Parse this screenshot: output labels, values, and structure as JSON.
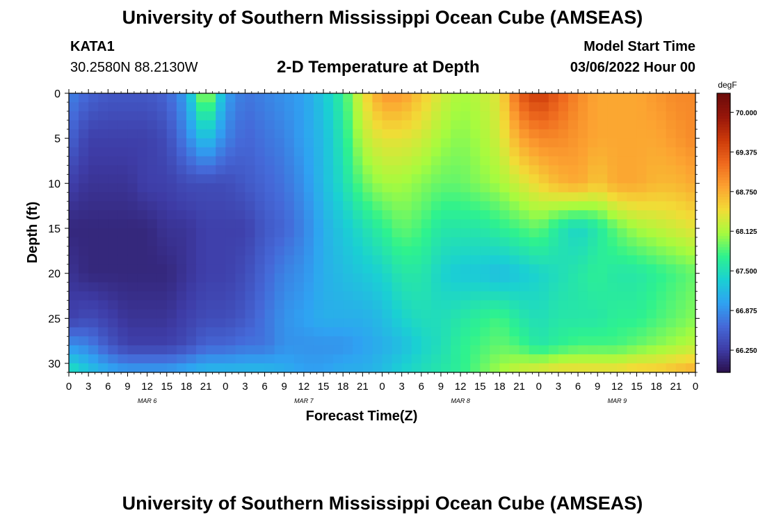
{
  "header": {
    "title": "University of Southern Mississippi Ocean Cube (AMSEAS)",
    "station_id": "KATA1",
    "coordinates": "30.2580N  88.2130W",
    "subtitle": "2-D Temperature at Depth",
    "start_label": "Model Start Time",
    "start_value": "03/06/2022 Hour 00"
  },
  "footer": {
    "title": "University of Southern Mississippi Ocean Cube (AMSEAS)"
  },
  "chart_data": {
    "type": "heatmap",
    "title": "2-D Temperature at Depth",
    "xlabel": "Forecast Time(Z)",
    "ylabel": "Depth (ft)",
    "x_unit": "forecast hour from 03/06/2022 00Z",
    "xlim": [
      0,
      96
    ],
    "ylim": [
      0,
      31
    ],
    "y_inverted": true,
    "x_tick_hours": [
      0,
      3,
      6,
      9,
      12,
      15,
      18,
      21,
      24,
      27,
      30,
      33,
      36,
      39,
      42,
      45,
      48,
      51,
      54,
      57,
      60,
      63,
      66,
      69,
      72,
      75,
      78,
      81,
      84,
      87,
      90,
      93,
      96
    ],
    "x_tick_labels": [
      "0",
      "3",
      "6",
      "9",
      "12",
      "15",
      "18",
      "21",
      "0",
      "3",
      "6",
      "9",
      "12",
      "15",
      "18",
      "21",
      "0",
      "3",
      "6",
      "9",
      "12",
      "15",
      "18",
      "21",
      "0",
      "3",
      "6",
      "9",
      "12",
      "15",
      "18",
      "21",
      "0"
    ],
    "date_labels": [
      {
        "hour": 12,
        "label": "MAR 6"
      },
      {
        "hour": 36,
        "label": "MAR 7"
      },
      {
        "hour": 60,
        "label": "MAR 8"
      },
      {
        "hour": 84,
        "label": "MAR 9"
      }
    ],
    "y_ticks": [
      0,
      5,
      10,
      15,
      20,
      25,
      30
    ],
    "colorbar": {
      "unit": "degF",
      "min": 65.9,
      "max": 70.3,
      "ticks": [
        66.25,
        66.875,
        67.5,
        68.125,
        68.75,
        69.375,
        70.0
      ],
      "tick_labels": [
        "66.250",
        "66.875",
        "67.500",
        "68.125",
        "68.750",
        "69.375",
        "70.000"
      ],
      "colors": [
        "#2a0f4a",
        "#3e3ca6",
        "#4569d8",
        "#2fa2f2",
        "#1ad0d3",
        "#2ef28e",
        "#a7fb3e",
        "#f2dc36",
        "#fca231",
        "#ef6a1e",
        "#cc3a0a",
        "#97160a",
        "#6b0b0a"
      ]
    },
    "depths": [
      0,
      5,
      10,
      15,
      20,
      25,
      28,
      31
    ],
    "times": [
      0,
      3,
      6,
      9,
      12,
      15,
      18,
      21,
      24,
      27,
      30,
      33,
      36,
      39,
      42,
      45,
      48,
      51,
      54,
      57,
      60,
      63,
      66,
      69,
      72,
      75,
      78,
      81,
      84,
      87,
      90,
      93,
      96
    ],
    "temperature": [
      [
        66.8,
        66.6,
        66.5,
        66.5,
        66.5,
        66.6,
        67.0,
        68.3,
        67.0,
        66.7,
        66.8,
        66.9,
        67.0,
        67.3,
        67.7,
        68.4,
        68.9,
        68.9,
        68.6,
        68.3,
        68.1,
        68.2,
        68.4,
        69.3,
        69.6,
        69.3,
        69.0,
        68.8,
        68.8,
        68.8,
        68.9,
        69.0,
        69.0
      ],
      [
        66.6,
        66.3,
        66.3,
        66.3,
        66.3,
        66.4,
        66.8,
        67.3,
        66.8,
        66.6,
        66.7,
        66.8,
        67.0,
        67.2,
        67.6,
        68.2,
        68.4,
        68.4,
        68.3,
        68.1,
        68.0,
        68.1,
        68.3,
        68.8,
        69.0,
        69.0,
        68.9,
        68.8,
        68.8,
        68.8,
        68.8,
        68.9,
        69.0
      ],
      [
        66.3,
        66.2,
        66.2,
        66.2,
        66.3,
        66.3,
        66.4,
        66.4,
        66.4,
        66.5,
        66.6,
        66.7,
        66.9,
        67.2,
        67.5,
        67.9,
        68.1,
        68.1,
        68.0,
        67.9,
        67.9,
        68.0,
        68.1,
        68.3,
        68.5,
        68.7,
        68.8,
        68.6,
        68.8,
        68.8,
        68.7,
        68.7,
        68.8
      ],
      [
        66.1,
        66.1,
        66.1,
        66.1,
        66.1,
        66.2,
        66.2,
        66.3,
        66.3,
        66.3,
        66.5,
        66.6,
        66.8,
        67.1,
        67.3,
        67.5,
        67.7,
        67.9,
        67.8,
        67.6,
        67.6,
        67.6,
        67.7,
        67.8,
        67.9,
        67.6,
        67.4,
        67.6,
        67.9,
        68.1,
        68.2,
        68.3,
        68.4
      ],
      [
        66.2,
        66.1,
        66.1,
        66.1,
        66.1,
        66.1,
        66.2,
        66.3,
        66.3,
        66.4,
        66.6,
        66.8,
        66.9,
        67.1,
        67.2,
        67.3,
        67.4,
        67.6,
        67.6,
        67.4,
        67.3,
        67.3,
        67.2,
        67.3,
        67.4,
        67.5,
        67.6,
        67.7,
        67.6,
        67.6,
        67.7,
        67.8,
        67.9
      ],
      [
        66.3,
        66.4,
        66.3,
        66.2,
        66.2,
        66.2,
        66.3,
        66.4,
        66.4,
        66.5,
        66.7,
        66.9,
        67.0,
        67.1,
        67.1,
        67.1,
        67.2,
        67.4,
        67.5,
        67.5,
        67.6,
        67.7,
        67.8,
        67.6,
        67.5,
        67.6,
        67.6,
        67.6,
        67.7,
        67.7,
        67.8,
        67.9,
        68.0
      ],
      [
        66.9,
        66.8,
        66.5,
        66.3,
        66.3,
        66.3,
        66.4,
        66.6,
        66.6,
        66.7,
        66.7,
        66.9,
        66.9,
        66.9,
        66.9,
        67.0,
        67.1,
        67.2,
        67.4,
        67.5,
        67.7,
        67.8,
        67.9,
        67.8,
        67.6,
        67.7,
        67.8,
        67.8,
        67.8,
        67.9,
        68.0,
        68.1,
        68.2
      ],
      [
        67.6,
        67.3,
        67.1,
        67.0,
        67.0,
        67.0,
        67.1,
        67.2,
        67.2,
        67.2,
        67.2,
        67.1,
        67.0,
        67.0,
        67.1,
        67.1,
        67.2,
        67.4,
        67.5,
        67.6,
        67.7,
        67.9,
        68.1,
        68.3,
        68.4,
        68.5,
        68.5,
        68.5,
        68.5,
        68.6,
        68.6,
        68.7,
        68.8
      ]
    ]
  }
}
